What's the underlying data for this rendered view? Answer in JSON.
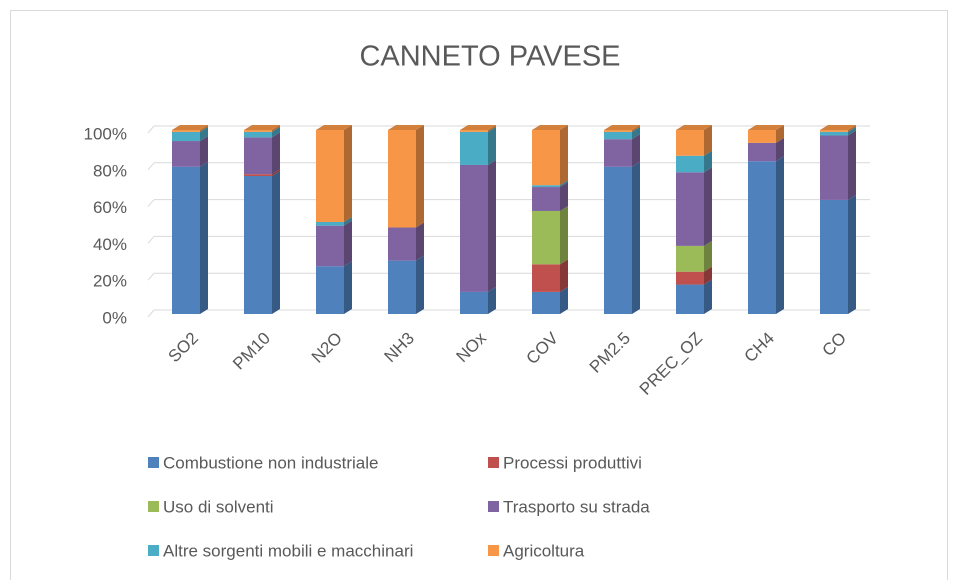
{
  "chart_data": {
    "type": "bar",
    "stacked": true,
    "title": "CANNETO PAVESE",
    "categories": [
      "SO2",
      "PM10",
      "N2O",
      "NH3",
      "NOx",
      "COV",
      "PM2.5",
      "PREC_OZ",
      "CH4",
      "CO"
    ],
    "series": [
      {
        "name": "Combustione non industriale",
        "color": "#4f81bd",
        "values": [
          80,
          75,
          26,
          29,
          12,
          12,
          80,
          16,
          83,
          62
        ]
      },
      {
        "name": "Processi produttivi",
        "color": "#c0504d",
        "values": [
          0,
          1,
          0,
          0,
          0,
          15,
          0,
          7,
          0,
          0
        ]
      },
      {
        "name": "Uso di solventi",
        "color": "#9bbb59",
        "values": [
          0,
          0,
          0,
          0,
          0,
          29,
          0,
          14,
          0,
          0
        ]
      },
      {
        "name": "Trasporto su strada",
        "color": "#8064a2",
        "values": [
          14,
          20,
          22,
          18,
          69,
          13,
          15,
          40,
          10,
          35
        ]
      },
      {
        "name": "Altre sorgenti mobili e macchinari",
        "color": "#4bacc6",
        "values": [
          5,
          3,
          2,
          0,
          18,
          1,
          4,
          9,
          0,
          2
        ]
      },
      {
        "name": "Agricoltura",
        "color": "#f79646",
        "values": [
          1,
          1,
          50,
          53,
          1,
          30,
          1,
          14,
          7,
          1
        ]
      }
    ],
    "ylim": [
      0,
      100
    ],
    "yticks": [
      {
        "value": 0,
        "label": "0%"
      },
      {
        "value": 20,
        "label": "20%"
      },
      {
        "value": 40,
        "label": "40%"
      },
      {
        "value": 60,
        "label": "60%"
      },
      {
        "value": 80,
        "label": "80%"
      },
      {
        "value": 100,
        "label": "100%"
      }
    ],
    "grid": true,
    "legend": "bottom"
  }
}
